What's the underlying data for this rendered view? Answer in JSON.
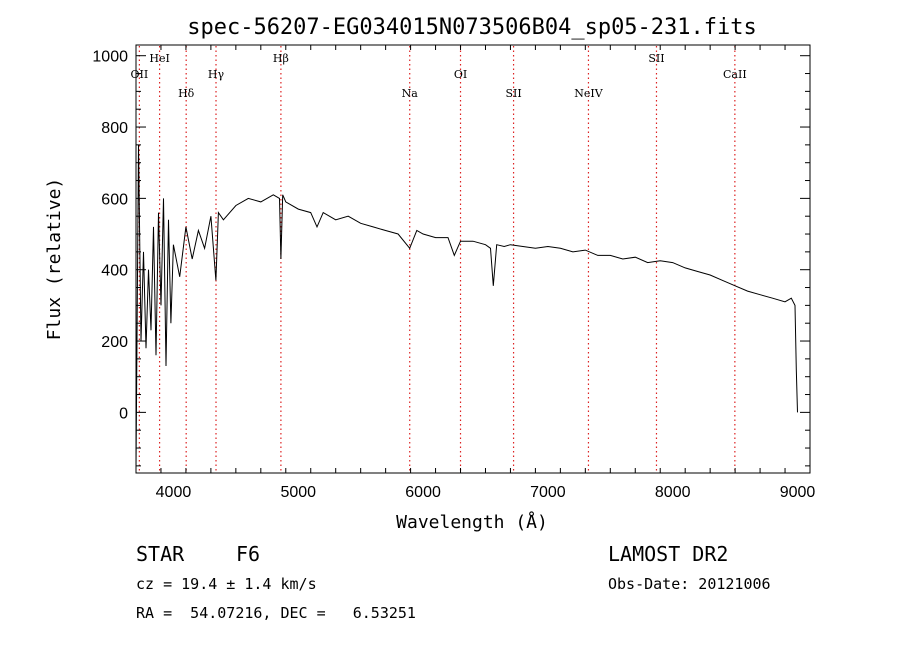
{
  "chart_data": {
    "type": "line",
    "title": "spec-56207-EG034015N073506B04_sp05-231.fits",
    "xlabel": "Wavelength (Å)",
    "ylabel": "Flux (relative)",
    "xlim": [
      3700,
      9100
    ],
    "ylim": [
      -170,
      1030
    ],
    "xticks": [
      4000,
      5000,
      6000,
      7000,
      8000,
      9000
    ],
    "yticks": [
      0,
      200,
      400,
      600,
      800,
      1000
    ],
    "grid": false,
    "line_color": "#000000",
    "marker_color": "#dd2222",
    "lines": [
      {
        "label": "OII",
        "wave": 3727,
        "row": 2
      },
      {
        "label": "HeI",
        "wave": 3889,
        "row": 1
      },
      {
        "label": "Hδ",
        "wave": 4102,
        "row": 3
      },
      {
        "label": "Hγ",
        "wave": 4341,
        "row": 2
      },
      {
        "label": "Hβ",
        "wave": 4861,
        "row": 1
      },
      {
        "label": "Na",
        "wave": 5893,
        "row": 3
      },
      {
        "label": "OI",
        "wave": 6300,
        "row": 2
      },
      {
        "label": "SII",
        "wave": 6725,
        "row": 3
      },
      {
        "label": "NeIV",
        "wave": 7325,
        "row": 3
      },
      {
        "label": "SII",
        "wave": 7870,
        "row": 1
      },
      {
        "label": "CaII",
        "wave": 8498,
        "row": 2
      }
    ],
    "series": [
      {
        "x": [
          3700,
          3720,
          3740,
          3760,
          3780,
          3800,
          3820,
          3840,
          3860,
          3880,
          3900,
          3920,
          3940,
          3960,
          3980,
          4000,
          4050,
          4100,
          4150,
          4200,
          4250,
          4300,
          4340,
          4360,
          4400,
          4500,
          4600,
          4700,
          4800,
          4850,
          4861,
          4875,
          4900,
          5000,
          5100,
          5150,
          5200,
          5300,
          5400,
          5500,
          5600,
          5700,
          5800,
          5893,
          5950,
          6000,
          6100,
          6200,
          6250,
          6300,
          6400,
          6500,
          6540,
          6563,
          6590,
          6650,
          6700,
          6800,
          6900,
          7000,
          7100,
          7200,
          7300,
          7400,
          7500,
          7600,
          7700,
          7800,
          7900,
          8000,
          8100,
          8200,
          8300,
          8400,
          8500,
          8600,
          8700,
          8800,
          8900,
          8950,
          8980,
          8990,
          9000
        ],
        "y": [
          -160,
          750,
          200,
          450,
          180,
          400,
          230,
          520,
          160,
          560,
          300,
          600,
          130,
          540,
          250,
          470,
          380,
          520,
          430,
          510,
          460,
          550,
          370,
          560,
          540,
          580,
          600,
          590,
          610,
          600,
          430,
          610,
          590,
          570,
          560,
          520,
          560,
          540,
          550,
          530,
          520,
          510,
          500,
          460,
          510,
          500,
          490,
          490,
          440,
          480,
          480,
          470,
          460,
          355,
          470,
          465,
          470,
          465,
          460,
          465,
          460,
          450,
          455,
          440,
          440,
          430,
          435,
          420,
          425,
          420,
          405,
          395,
          385,
          370,
          355,
          340,
          330,
          320,
          310,
          320,
          300,
          120,
          0
        ]
      }
    ]
  },
  "info": {
    "class_label": "STAR",
    "subclass": "F6",
    "survey": "LAMOST DR2",
    "redshift_text": "cz = 19.4 ± 1.4 km/s",
    "obs_date_text": "Obs-Date: 20121006",
    "coords_text": "RA =  54.07216, DEC =   6.53251"
  }
}
